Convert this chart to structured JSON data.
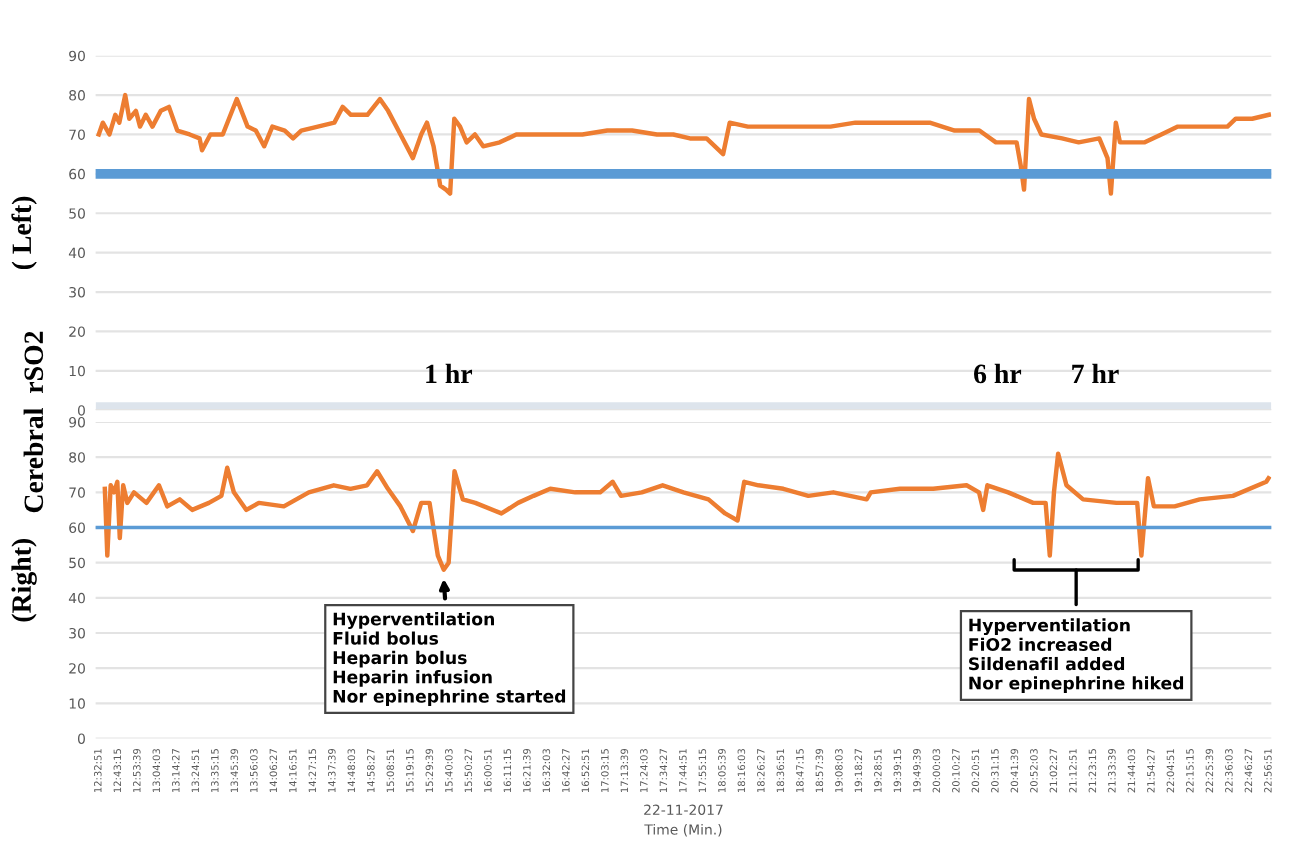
{
  "chart_data": [
    {
      "type": "line",
      "ylabel": "( Left)",
      "tick_labels": "y",
      "grid": "y",
      "legend": false,
      "xlim": [
        12.52,
        22.97
      ],
      "ylim": [
        0,
        90
      ],
      "yticks": [
        0,
        10,
        20,
        30,
        40,
        50,
        60,
        70,
        80,
        90
      ],
      "series": [
        {
          "color": "#ed7d31",
          "x": [
            12.548,
            12.584,
            12.643,
            12.695,
            12.731,
            12.783,
            12.819,
            12.878,
            12.915,
            12.966,
            13.025,
            13.099,
            13.172,
            13.246,
            13.356,
            13.444,
            13.466,
            13.54,
            13.65,
            13.775,
            13.871,
            13.944,
            14.018,
            14.091,
            14.201,
            14.275,
            14.348,
            14.495,
            14.642,
            14.716,
            14.789,
            14.936,
            15.047,
            15.12,
            15.23,
            15.34,
            15.414,
            15.465,
            15.524,
            15.583,
            15.634,
            15.671,
            15.708,
            15.759,
            15.818,
            15.892,
            15.965,
            16.112,
            16.259,
            16.48,
            16.847,
            17.068,
            17.288,
            17.509,
            17.655,
            17.803,
            17.95,
            18.06,
            18.097,
            18.156,
            18.317,
            18.685,
            19.052,
            19.273,
            19.64,
            19.934,
            20.155,
            20.375,
            20.522,
            20.706,
            20.743,
            20.772,
            20.816,
            20.861,
            20.926,
            21.11,
            21.257,
            21.441,
            21.514,
            21.544,
            21.588,
            21.625,
            21.845,
            21.992,
            22.139,
            22.36,
            22.58,
            22.654,
            22.8,
            22.948
          ],
          "values": [
            70,
            73,
            70,
            75,
            73,
            80,
            74,
            76,
            72,
            75,
            72,
            76,
            77,
            71,
            70,
            69,
            66,
            70,
            70,
            79,
            72,
            71,
            67,
            72,
            71,
            69,
            71,
            72,
            73,
            77,
            75,
            75,
            79,
            76,
            70,
            64,
            70,
            73,
            67,
            57,
            56,
            55,
            74,
            72,
            68,
            70,
            67,
            68,
            70,
            70,
            70,
            71,
            71,
            70,
            70,
            69,
            69,
            66,
            65,
            73,
            72,
            72,
            72,
            73,
            73,
            73,
            71,
            71,
            68,
            68,
            62,
            56,
            79,
            74,
            70,
            69,
            68,
            69,
            64,
            55,
            73,
            68,
            68,
            70,
            72,
            72,
            72,
            74,
            74,
            75
          ]
        }
      ],
      "ref_lines": [
        {
          "axis": "y",
          "value": 60,
          "color": "#5b9bd5"
        }
      ],
      "bands": [
        {
          "axis": "y",
          "from": 0,
          "to": 2,
          "color": "#dde4ec"
        }
      ],
      "annotations": [
        "1 hr",
        "6 hr",
        "7 hr",
        "Cerebral  rSO2"
      ]
    },
    {
      "type": "line",
      "ylabel": "(Right)",
      "xlabel": "22-11-2017\nTime (Min.)",
      "grid": "y",
      "legend": false,
      "xlim": [
        12.52,
        22.97
      ],
      "ylim": [
        0,
        90
      ],
      "yticks": [
        0,
        10,
        20,
        30,
        40,
        50,
        60,
        70,
        80,
        90
      ],
      "xticks": [
        {
          "value": 12.5475,
          "label": "12:32:51"
        },
        {
          "value": 12.7208,
          "label": "12:43:15"
        },
        {
          "value": 12.8942,
          "label": "12:53:39"
        },
        {
          "value": 13.0675,
          "label": "13:04:03"
        },
        {
          "value": 13.2408,
          "label": "13:14:27"
        },
        {
          "value": 13.4142,
          "label": "13:24:51"
        },
        {
          "value": 13.5875,
          "label": "13:35:15"
        },
        {
          "value": 13.7608,
          "label": "13:45:39"
        },
        {
          "value": 13.9342,
          "label": "13:56:03"
        },
        {
          "value": 14.1075,
          "label": "14:06:27"
        },
        {
          "value": 14.2808,
          "label": "14:16:51"
        },
        {
          "value": 14.4542,
          "label": "14:27:15"
        },
        {
          "value": 14.6275,
          "label": "14:37:39"
        },
        {
          "value": 14.8008,
          "label": "14:48:03"
        },
        {
          "value": 14.9742,
          "label": "14:58:27"
        },
        {
          "value": 15.1475,
          "label": "15:08:51"
        },
        {
          "value": 15.3208,
          "label": "15:19:15"
        },
        {
          "value": 15.4942,
          "label": "15:29:39"
        },
        {
          "value": 15.6675,
          "label": "15:40:03"
        },
        {
          "value": 15.8408,
          "label": "15:50:27"
        },
        {
          "value": 16.0142,
          "label": "16:00:51"
        },
        {
          "value": 16.1875,
          "label": "16:11:15"
        },
        {
          "value": 16.3608,
          "label": "16:21:39"
        },
        {
          "value": 16.5342,
          "label": "16:32:03"
        },
        {
          "value": 16.7075,
          "label": "16:42:27"
        },
        {
          "value": 16.8808,
          "label": "16:52:51"
        },
        {
          "value": 17.0542,
          "label": "17:03:15"
        },
        {
          "value": 17.2275,
          "label": "17:13:39"
        },
        {
          "value": 17.4008,
          "label": "17:24:03"
        },
        {
          "value": 17.5742,
          "label": "17:34:27"
        },
        {
          "value": 17.7475,
          "label": "17:44:51"
        },
        {
          "value": 17.9208,
          "label": "17:55:15"
        },
        {
          "value": 18.0942,
          "label": "18:05:39"
        },
        {
          "value": 18.2675,
          "label": "18:16:03"
        },
        {
          "value": 18.4408,
          "label": "18:26:27"
        },
        {
          "value": 18.6142,
          "label": "18:36:51"
        },
        {
          "value": 18.7875,
          "label": "18:47:15"
        },
        {
          "value": 18.9608,
          "label": "18:57:39"
        },
        {
          "value": 19.1342,
          "label": "19:08:03"
        },
        {
          "value": 19.3075,
          "label": "19:18:27"
        },
        {
          "value": 19.4808,
          "label": "19:28:51"
        },
        {
          "value": 19.6542,
          "label": "19:39:15"
        },
        {
          "value": 19.8275,
          "label": "19:49:39"
        },
        {
          "value": 20.0008,
          "label": "20:00:03"
        },
        {
          "value": 20.1742,
          "label": "20:10:27"
        },
        {
          "value": 20.3475,
          "label": "20:20:51"
        },
        {
          "value": 20.5208,
          "label": "20:31:15"
        },
        {
          "value": 20.6942,
          "label": "20:41:39"
        },
        {
          "value": 20.8675,
          "label": "20:52:03"
        },
        {
          "value": 21.0408,
          "label": "21:02:27"
        },
        {
          "value": 21.2142,
          "label": "21:12:51"
        },
        {
          "value": 21.3875,
          "label": "21:23:15"
        },
        {
          "value": 21.5608,
          "label": "21:33:39"
        },
        {
          "value": 21.7342,
          "label": "21:44:03"
        },
        {
          "value": 21.9075,
          "label": "21:54:27"
        },
        {
          "value": 22.0808,
          "label": "22:04:51"
        },
        {
          "value": 22.2542,
          "label": "22:15:15"
        },
        {
          "value": 22.4275,
          "label": "22:25:39"
        },
        {
          "value": 22.6008,
          "label": "22:36:03"
        },
        {
          "value": 22.7742,
          "label": "22:46:27"
        },
        {
          "value": 22.9475,
          "label": "22:56:51"
        }
      ],
      "series": [
        {
          "color": "#ed7d31",
          "x": [
            12.602,
            12.624,
            12.654,
            12.684,
            12.713,
            12.735,
            12.765,
            12.802,
            12.861,
            12.972,
            13.083,
            13.157,
            13.268,
            13.379,
            13.527,
            13.638,
            13.69,
            13.749,
            13.86,
            13.971,
            14.193,
            14.415,
            14.637,
            14.785,
            14.933,
            15.022,
            15.118,
            15.229,
            15.34,
            15.414,
            15.488,
            15.562,
            15.614,
            15.658,
            15.71,
            15.784,
            15.895,
            16.127,
            16.275,
            16.413,
            16.561,
            16.783,
            17.005,
            17.116,
            17.19,
            17.375,
            17.56,
            17.745,
            17.967,
            18.115,
            18.226,
            18.285,
            18.411,
            18.633,
            18.855,
            19.077,
            19.373,
            19.41,
            19.669,
            19.965,
            20.261,
            20.372,
            20.409,
            20.446,
            20.631,
            20.853,
            20.964,
            21.001,
            21.038,
            21.075,
            21.149,
            21.297,
            21.593,
            21.778,
            21.815,
            21.874,
            21.926,
            22.111,
            22.333,
            22.629,
            22.925,
            22.945
          ],
          "values": [
            71,
            52,
            72,
            70,
            73,
            57,
            72,
            67,
            70,
            67,
            72,
            66,
            68,
            65,
            67,
            69,
            77,
            70,
            65,
            67,
            66,
            70,
            72,
            71,
            72,
            76,
            71,
            66,
            59,
            67,
            67,
            52,
            48,
            50,
            76,
            68,
            67,
            64,
            67,
            69,
            71,
            70,
            70,
            73,
            69,
            70,
            72,
            70,
            68,
            64,
            62,
            73,
            72,
            71,
            69,
            70,
            68,
            70,
            71,
            71,
            72,
            70,
            65,
            72,
            70,
            67,
            67,
            52,
            70,
            81,
            72,
            68,
            67,
            67,
            52,
            74,
            66,
            66,
            68,
            69,
            73,
            74
          ]
        }
      ],
      "ref_lines": [
        {
          "axis": "y",
          "value": 60,
          "color": "#5b9bd5"
        }
      ],
      "annotations": [
        {
          "text": "Hyperventilation\nFluid bolus\nHeparin bolus\nHeparin infusion\nNor epinephrine started",
          "x": 15.61,
          "y": 47
        },
        "Hyperventilation\nFiO2 increased\nSildenafil added\nNor epinephrine hiked"
      ]
    }
  ]
}
